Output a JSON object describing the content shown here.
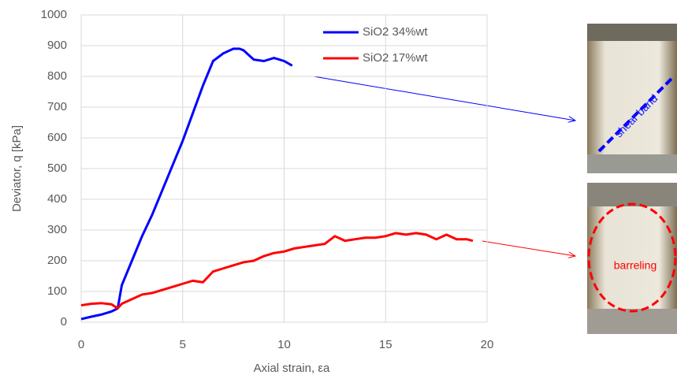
{
  "chart_data": {
    "type": "line",
    "x_label": "Axial strain, εa",
    "y_label": "Deviator, q [kPa]",
    "xlim": [
      0,
      20
    ],
    "xticks": [
      0,
      5,
      10,
      15,
      20
    ],
    "ylim": [
      0,
      1000
    ],
    "yticks": [
      0,
      100,
      200,
      300,
      400,
      500,
      600,
      700,
      800,
      900,
      1000
    ],
    "grid": true,
    "legend": "top",
    "series": [
      {
        "name": "SiO2 34%wt",
        "color": "#0000ff",
        "x": [
          0,
          0.5,
          1,
          1.5,
          1.8,
          2,
          2.5,
          3,
          3.5,
          4,
          4.5,
          5,
          5.5,
          6,
          6.5,
          7,
          7.5,
          7.8,
          8,
          8.5,
          9,
          9.5,
          10,
          10.4
        ],
        "values": [
          10,
          18,
          25,
          35,
          45,
          120,
          200,
          280,
          350,
          430,
          510,
          590,
          680,
          770,
          850,
          875,
          890,
          890,
          885,
          855,
          850,
          860,
          850,
          835
        ]
      },
      {
        "name": "SiO2 17%wt",
        "color": "#ff0000",
        "x": [
          0,
          0.5,
          1,
          1.5,
          1.8,
          2,
          2.5,
          3,
          3.5,
          4,
          4.5,
          5,
          5.5,
          6,
          6.5,
          7,
          7.5,
          8,
          8.5,
          9,
          9.5,
          10,
          10.5,
          11,
          11.5,
          12,
          12.5,
          13,
          13.5,
          14,
          14.5,
          15,
          15.5,
          16,
          16.5,
          17,
          17.5,
          18,
          18.5,
          19,
          19.3
        ],
        "values": [
          55,
          60,
          62,
          58,
          45,
          60,
          75,
          90,
          95,
          105,
          115,
          125,
          135,
          130,
          165,
          175,
          185,
          195,
          200,
          215,
          225,
          230,
          240,
          245,
          250,
          255,
          280,
          265,
          270,
          275,
          275,
          280,
          290,
          285,
          290,
          285,
          270,
          285,
          270,
          270,
          265
        ]
      }
    ],
    "annotations": [
      "shear band",
      "barreling"
    ]
  }
}
